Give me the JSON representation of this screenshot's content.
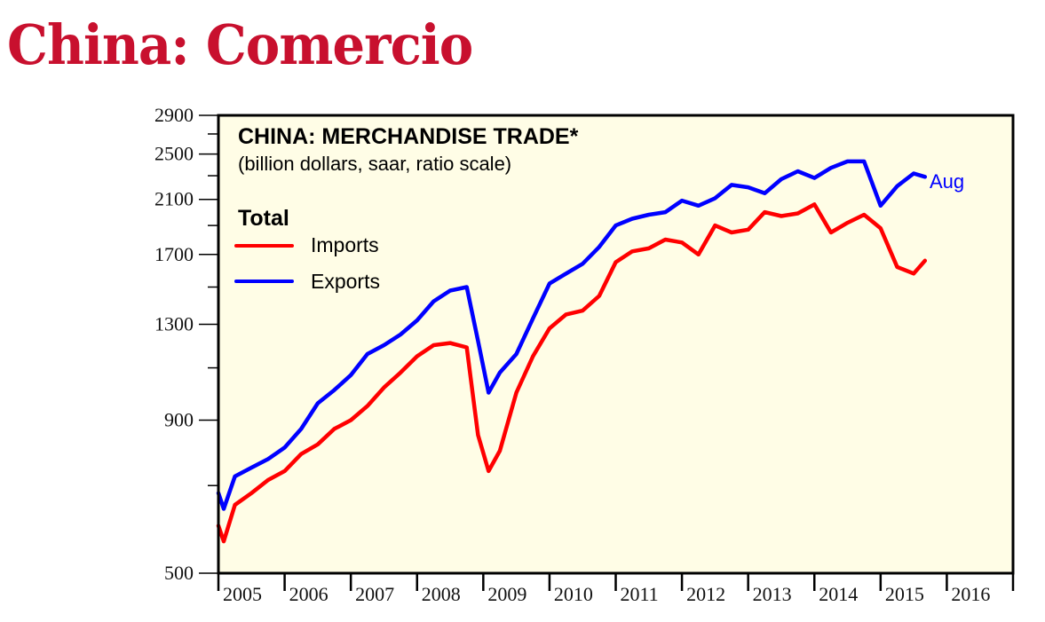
{
  "page": {
    "title": "China: Comercio"
  },
  "colors": {
    "title": "#c8102e",
    "plot_background": "#fffde6",
    "imports": "#ff0000",
    "exports": "#0000ff",
    "axis": "#000000"
  },
  "chart": {
    "title": "CHINA: MERCHANDISE TRADE*",
    "subtitle": "(billion dollars, saar, ratio scale)",
    "legend_heading": "Total",
    "legend": [
      {
        "label": "Imports",
        "color": "#ff0000"
      },
      {
        "label": "Exports",
        "color": "#0000ff"
      }
    ],
    "end_label": "Aug"
  },
  "chart_data": {
    "type": "line",
    "title": "CHINA: MERCHANDISE TRADE*",
    "subtitle": "(billion dollars, saar, ratio scale)",
    "xlabel": "",
    "ylabel": "billion dollars, saar (ratio scale)",
    "yscale": "log",
    "ylim": [
      500,
      2900
    ],
    "yticks": [
      500,
      900,
      1300,
      1700,
      2100,
      2500,
      2900
    ],
    "yminor_ticks": [
      700,
      1100,
      1500,
      1900,
      2300,
      2700
    ],
    "xlim": [
      2005.0,
      2017.0
    ],
    "xtick_labels": [
      "2005",
      "2006",
      "2007",
      "2008",
      "2009",
      "2010",
      "2011",
      "2012",
      "2013",
      "2014",
      "2015",
      "2016"
    ],
    "grid": false,
    "legend_position": "upper left",
    "legend_heading": "Total",
    "annotations": [
      {
        "text": "Aug",
        "x": 2015.67,
        "series": "Exports"
      }
    ],
    "x": [
      2005.0,
      2005.08,
      2005.25,
      2005.5,
      2005.75,
      2006.0,
      2006.25,
      2006.5,
      2006.75,
      2007.0,
      2007.25,
      2007.5,
      2007.75,
      2008.0,
      2008.25,
      2008.5,
      2008.75,
      2008.92,
      2009.08,
      2009.25,
      2009.5,
      2009.75,
      2010.0,
      2010.25,
      2010.5,
      2010.75,
      2011.0,
      2011.25,
      2011.5,
      2011.75,
      2012.0,
      2012.25,
      2012.5,
      2012.75,
      2013.0,
      2013.25,
      2013.5,
      2013.75,
      2014.0,
      2014.25,
      2014.5,
      2014.75,
      2015.0,
      2015.25,
      2015.5,
      2015.67
    ],
    "series": [
      {
        "name": "Imports",
        "color": "#ff0000",
        "values": [
          600,
          565,
          650,
          680,
          715,
          740,
          790,
          820,
          870,
          900,
          950,
          1020,
          1080,
          1150,
          1200,
          1210,
          1190,
          850,
          740,
          800,
          1000,
          1150,
          1280,
          1350,
          1370,
          1450,
          1650,
          1720,
          1740,
          1800,
          1780,
          1700,
          1900,
          1850,
          1870,
          2000,
          1970,
          1990,
          2060,
          1850,
          1920,
          1980,
          1880,
          1620,
          1580,
          1660
        ]
      },
      {
        "name": "Exports",
        "color": "#0000ff",
        "values": [
          680,
          640,
          725,
          750,
          775,
          810,
          870,
          960,
          1010,
          1070,
          1160,
          1200,
          1250,
          1320,
          1420,
          1480,
          1500,
          1220,
          1000,
          1080,
          1160,
          1330,
          1520,
          1580,
          1640,
          1750,
          1900,
          1950,
          1980,
          2000,
          2090,
          2050,
          2110,
          2220,
          2200,
          2150,
          2270,
          2340,
          2280,
          2370,
          2430,
          2430,
          2050,
          2210,
          2320,
          2290
        ]
      }
    ]
  },
  "axes": {
    "y_ticks": [
      {
        "label": "2900",
        "value": 2900
      },
      {
        "label": "2500",
        "value": 2500
      },
      {
        "label": "2100",
        "value": 2100
      },
      {
        "label": "1700",
        "value": 1700
      },
      {
        "label": "1300",
        "value": 1300
      },
      {
        "label": "900",
        "value": 900
      },
      {
        "label": "500",
        "value": 500
      }
    ],
    "x_labels": [
      "2005",
      "2006",
      "2007",
      "2008",
      "2009",
      "2010",
      "2011",
      "2012",
      "2013",
      "2014",
      "2015",
      "2016"
    ]
  }
}
